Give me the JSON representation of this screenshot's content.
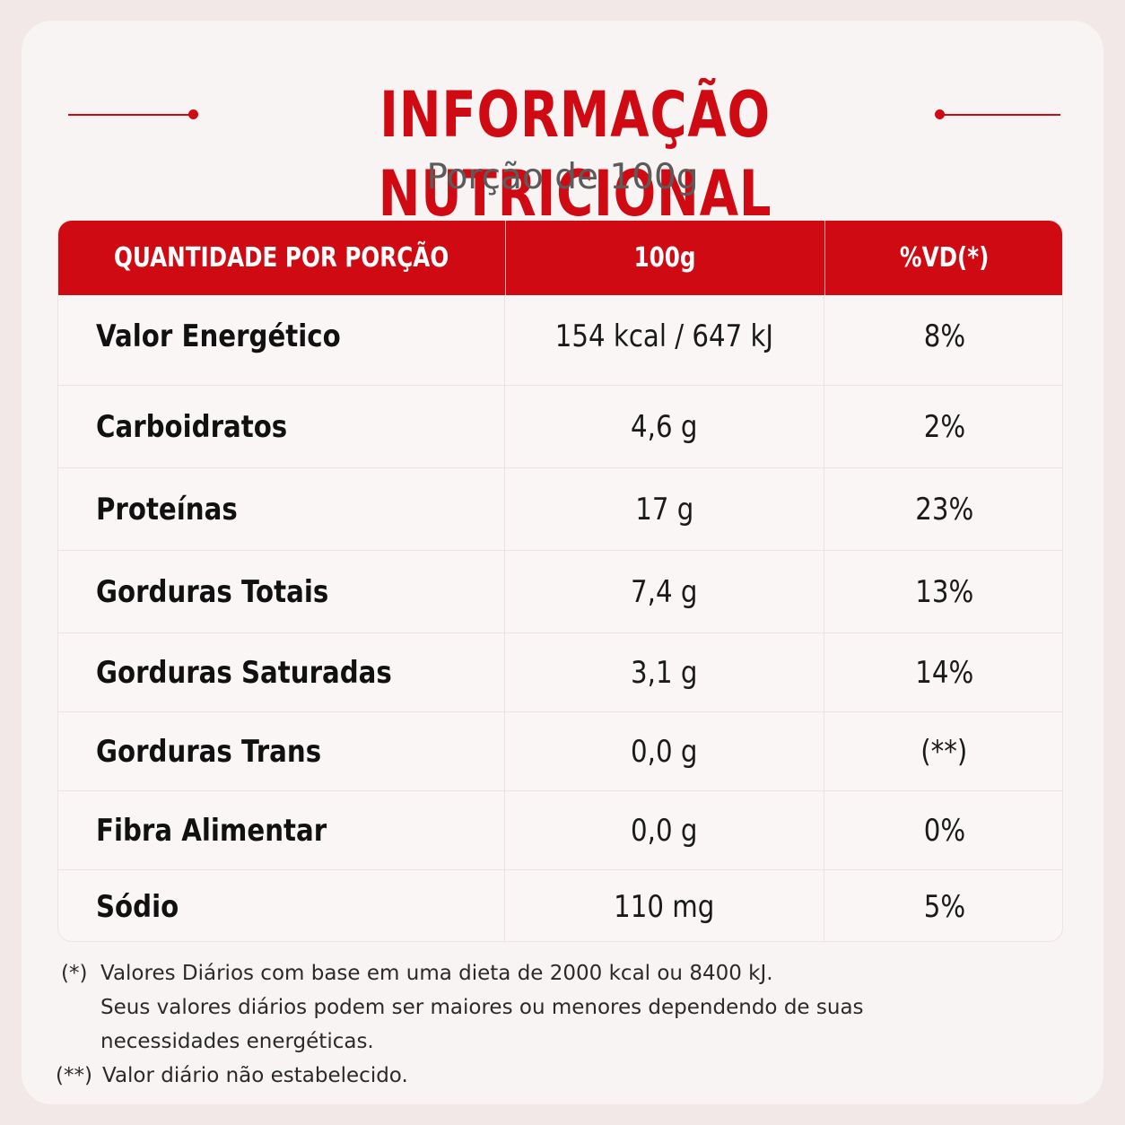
{
  "title": "INFORMAÇÃO NUTRICIONAL",
  "subtitle": "Porção de 100g",
  "table": {
    "headers": [
      "QUANTIDADE POR PORÇÃO",
      "100g",
      "%VD(*)"
    ],
    "rows": [
      {
        "name": "Valor Energético",
        "qty": "154 kcal / 647 kJ",
        "vd": "8%"
      },
      {
        "name": "Carboidratos",
        "qty": "4,6 g",
        "vd": "2%"
      },
      {
        "name": "Proteínas",
        "qty": "17 g",
        "vd": "23%"
      },
      {
        "name": "Gorduras Totais",
        "qty": "7,4 g",
        "vd": "13%"
      },
      {
        "name": "Gorduras Saturadas",
        "qty": "3,1 g",
        "vd": "14%"
      },
      {
        "name": "Gorduras Trans",
        "qty": "0,0 g",
        "vd": "(**)"
      },
      {
        "name": "Fibra Alimentar",
        "qty": "0,0 g",
        "vd": "0%"
      },
      {
        "name": "Sódio",
        "qty": "110 mg",
        "vd": "5%"
      }
    ]
  },
  "footnotes": {
    "star_mark": "(*)",
    "star_line1": "Valores Diários com base em uma dieta de 2000 kcal ou 8400 kJ.",
    "star_line2": "Seus valores diários podem ser maiores ou menores dependendo de suas",
    "star_line3": "necessidades energéticas.",
    "double_star_mark": "(**)",
    "double_star_text": "Valor diário não estabelecido."
  },
  "colors": {
    "accent": "#cf0a12",
    "card": "#f8f4f3",
    "background": "#f2e8e7"
  }
}
